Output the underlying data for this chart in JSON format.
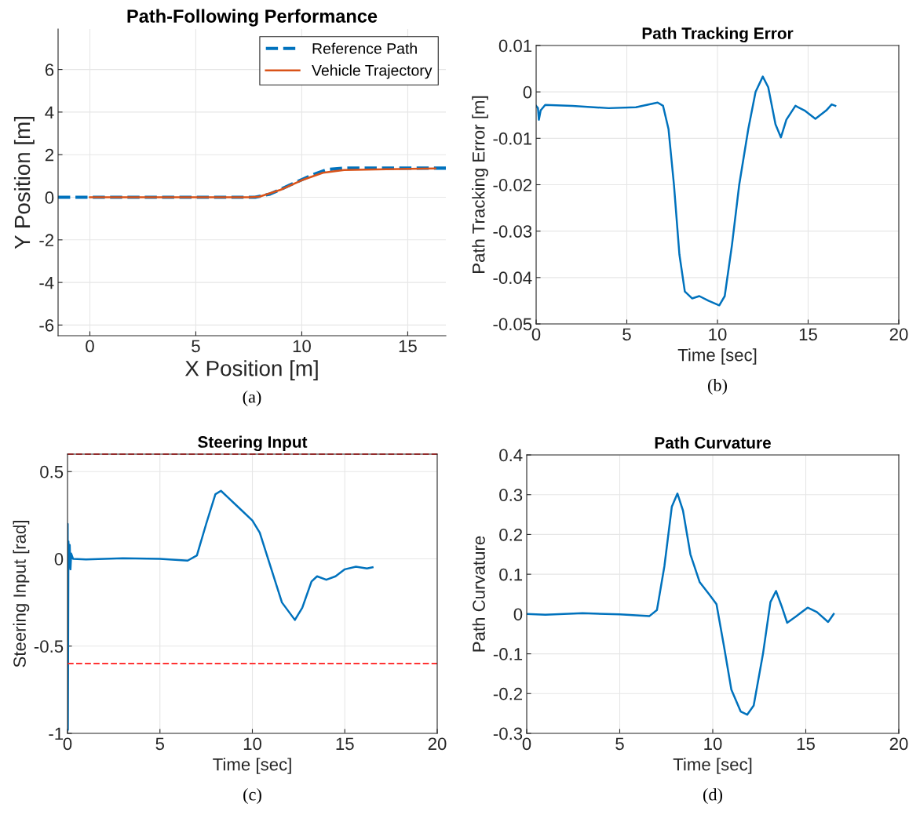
{
  "chart_data": [
    {
      "type": "line",
      "title": "Path-Following Performance",
      "xlabel": "X Position [m]",
      "ylabel": "Y Position [m]",
      "xlim": [
        -1.5,
        16.8
      ],
      "ylim": [
        -6.5,
        7.9
      ],
      "xticks": [
        0,
        5,
        10,
        15
      ],
      "yticks": [
        -6,
        -4,
        -2,
        0,
        2,
        4,
        6
      ],
      "grid": true,
      "legend": "top right",
      "annotations": [
        "(a)"
      ],
      "series": [
        {
          "name": "Reference Path",
          "color": "#0072bd",
          "line_style": "dashed",
          "x": [
            -1.5,
            0,
            4,
            7.8,
            8.5,
            9.5,
            10.5,
            11.2,
            12,
            14,
            16.8
          ],
          "values": [
            0,
            0,
            0,
            0,
            0.15,
            0.6,
            1.05,
            1.3,
            1.37,
            1.37,
            1.37
          ]
        },
        {
          "name": "Vehicle Trajectory",
          "color": "#d95319",
          "line_style": "solid",
          "x": [
            0,
            4,
            7.5,
            8,
            9,
            10,
            11,
            12,
            14,
            16.3
          ],
          "values": [
            0,
            0,
            0,
            0.03,
            0.35,
            0.8,
            1.15,
            1.28,
            1.32,
            1.35
          ]
        }
      ]
    },
    {
      "type": "line",
      "title": "Path Tracking Error",
      "xlabel": "Time [sec]",
      "ylabel": "Path Tracking Error [m]",
      "xlim": [
        0,
        20
      ],
      "ylim": [
        -0.05,
        0.01
      ],
      "xticks": [
        0,
        5,
        10,
        15,
        20
      ],
      "yticks": [
        -0.05,
        -0.04,
        -0.03,
        -0.02,
        -0.01,
        0,
        0.01
      ],
      "grid": true,
      "annotations": [
        "(b)"
      ],
      "series": [
        {
          "color": "#0072bd",
          "x": [
            0,
            0.1,
            0.15,
            0.25,
            0.5,
            2,
            4,
            5.5,
            6.7,
            7.0,
            7.3,
            7.6,
            7.9,
            8.2,
            8.6,
            9.0,
            9.5,
            10.1,
            10.4,
            10.8,
            11.2,
            11.7,
            12.1,
            12.5,
            12.8,
            13.2,
            13.5,
            13.8,
            14.3,
            14.8,
            15.4,
            16.0,
            16.3,
            16.5
          ],
          "values": [
            -0.003,
            -0.0035,
            -0.006,
            -0.004,
            -0.0028,
            -0.003,
            -0.0035,
            -0.0033,
            -0.0023,
            -0.003,
            -0.008,
            -0.02,
            -0.035,
            -0.043,
            -0.0445,
            -0.044,
            -0.045,
            -0.046,
            -0.044,
            -0.033,
            -0.02,
            -0.008,
            0.0,
            0.0033,
            0.001,
            -0.007,
            -0.0098,
            -0.006,
            -0.003,
            -0.004,
            -0.0058,
            -0.004,
            -0.0027,
            -0.003
          ]
        }
      ]
    },
    {
      "type": "line",
      "title": "Steering Input",
      "xlabel": "Time [sec]",
      "ylabel": "Steering Input [rad]",
      "xlim": [
        0,
        20
      ],
      "ylim": [
        -1,
        0.6
      ],
      "xticks": [
        0,
        5,
        10,
        15,
        20
      ],
      "yticks": [
        -1,
        -0.5,
        0,
        0.5
      ],
      "grid": true,
      "annotations": [
        "(c)"
      ],
      "ref_lines": [
        {
          "axis": "y",
          "value": 0.6,
          "color": "#ff3333",
          "line_style": "dashed"
        },
        {
          "axis": "y",
          "value": -0.6,
          "color": "#ff3333",
          "line_style": "dashed"
        }
      ],
      "series": [
        {
          "color": "#0072bd",
          "x": [
            0,
            0.01,
            0.02,
            0.05,
            0.08,
            0.12,
            0.16,
            0.2,
            0.3,
            1,
            3,
            5,
            6.5,
            7.0,
            7.5,
            8.0,
            8.3,
            8.7,
            9.3,
            10.0,
            10.4,
            11,
            11.6,
            12.3,
            12.7,
            13.2,
            13.5,
            14.0,
            14.5,
            15.0,
            15.6,
            16.2,
            16.5
          ],
          "values": [
            0,
            0.2,
            -0.98,
            0.1,
            -0.05,
            0.08,
            -0.06,
            0.03,
            0,
            -0.003,
            0.003,
            0,
            -0.01,
            0.02,
            0.2,
            0.37,
            0.39,
            0.35,
            0.29,
            0.22,
            0.15,
            -0.05,
            -0.25,
            -0.35,
            -0.28,
            -0.13,
            -0.1,
            -0.12,
            -0.1,
            -0.06,
            -0.045,
            -0.055,
            -0.048
          ]
        }
      ]
    },
    {
      "type": "line",
      "title": "Path Curvature",
      "xlabel": "Time [sec]",
      "ylabel": "Path Curvature",
      "xlim": [
        0,
        20
      ],
      "ylim": [
        -0.3,
        0.4
      ],
      "xticks": [
        0,
        5,
        10,
        15,
        20
      ],
      "yticks": [
        -0.3,
        -0.2,
        -0.1,
        0,
        0.1,
        0.2,
        0.3,
        0.4
      ],
      "grid": true,
      "annotations": [
        "(d)"
      ],
      "series": [
        {
          "color": "#0072bd",
          "x": [
            0,
            1,
            3,
            5,
            6.6,
            7.0,
            7.4,
            7.8,
            8.1,
            8.4,
            8.8,
            9.3,
            9.8,
            10.2,
            10.6,
            11.0,
            11.5,
            11.85,
            12.2,
            12.7,
            13.1,
            13.4,
            13.7,
            14.0,
            14.5,
            15.1,
            15.6,
            16.2,
            16.5
          ],
          "values": [
            0,
            -0.002,
            0.002,
            -0.001,
            -0.005,
            0.01,
            0.12,
            0.27,
            0.303,
            0.26,
            0.15,
            0.08,
            0.05,
            0.025,
            -0.08,
            -0.19,
            -0.245,
            -0.253,
            -0.23,
            -0.1,
            0.03,
            0.058,
            0.02,
            -0.022,
            -0.005,
            0.016,
            0.005,
            -0.02,
            0.0
          ]
        }
      ]
    }
  ]
}
